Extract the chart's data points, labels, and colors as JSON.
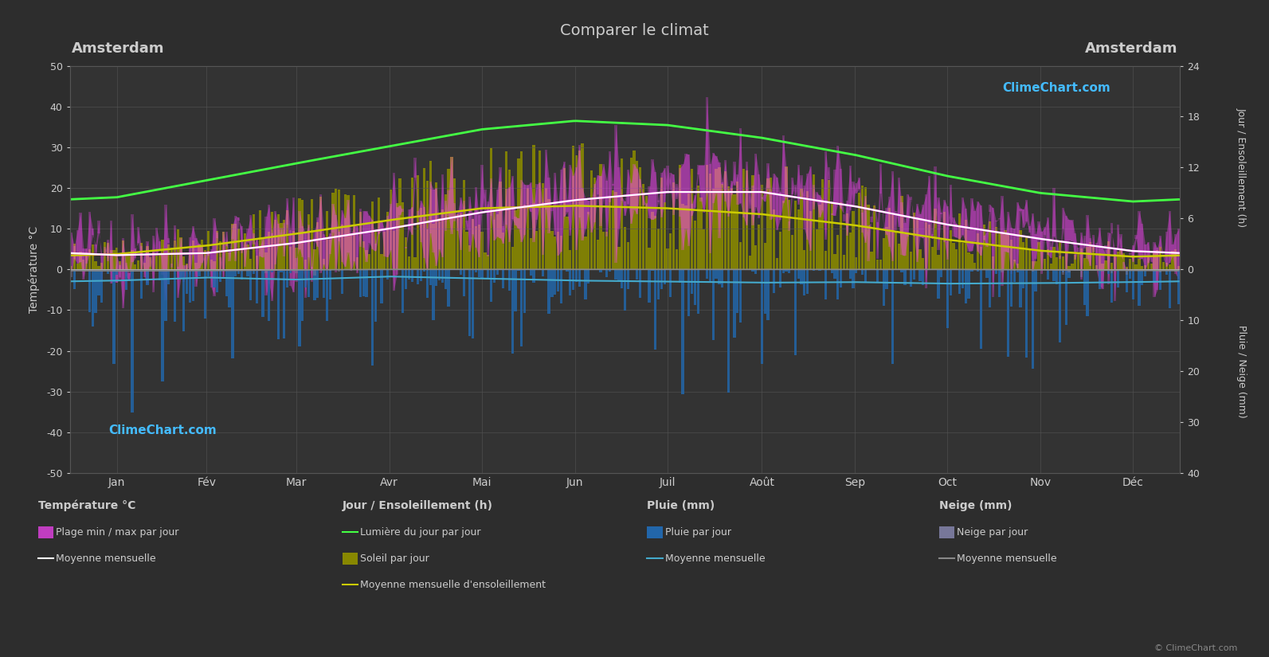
{
  "title": "Comparer le climat",
  "city_left": "Amsterdam",
  "city_right": "Amsterdam",
  "background_color": "#2d2d2d",
  "plot_bg_color": "#333333",
  "text_color": "#cccccc",
  "grid_color": "#555555",
  "months": [
    "Jan",
    "Fév",
    "Mar",
    "Avr",
    "Mai",
    "Jun",
    "Juil",
    "Août",
    "Sep",
    "Oct",
    "Nov",
    "Déc"
  ],
  "temp_ylim": [
    -50,
    50
  ],
  "temp_yticks": [
    -50,
    -40,
    -30,
    -20,
    -10,
    0,
    10,
    20,
    30,
    40,
    50
  ],
  "sun_yticks": [
    0,
    6,
    12,
    18,
    24
  ],
  "rain_yticks": [
    0,
    10,
    20,
    30,
    40
  ],
  "temp_max_monthly": [
    6,
    7,
    10,
    14,
    18,
    21,
    23,
    23,
    19,
    14,
    10,
    7
  ],
  "temp_min_monthly": [
    1,
    1,
    3,
    6,
    10,
    13,
    15,
    15,
    12,
    8,
    5,
    2
  ],
  "temp_mean_monthly": [
    3.5,
    4.0,
    6.5,
    10.0,
    14.0,
    17.0,
    19.0,
    19.0,
    15.5,
    11.0,
    7.5,
    4.5
  ],
  "daylight_monthly": [
    8.5,
    10.5,
    12.5,
    14.5,
    16.5,
    17.5,
    17.0,
    15.5,
    13.5,
    11.0,
    9.0,
    8.0
  ],
  "sunshine_monthly": [
    1.8,
    2.8,
    4.2,
    5.8,
    7.2,
    7.5,
    7.2,
    6.5,
    5.2,
    3.5,
    2.2,
    1.5
  ],
  "rain_daily_scale": 5.0,
  "rain_mean_monthly": [
    2.2,
    1.6,
    2.0,
    1.4,
    1.8,
    2.2,
    2.4,
    2.6,
    2.5,
    2.8,
    2.7,
    2.5
  ],
  "snow_daily_scale": 0.5,
  "snow_mean_monthly": [
    0.3,
    0.25,
    0.1,
    0,
    0,
    0,
    0,
    0,
    0,
    0,
    0.1,
    0.2
  ],
  "magenta_color": "#ff44ff",
  "white_line_color": "#ffffff",
  "green_line_color": "#44ff44",
  "yellow_line_color": "#cccc00",
  "olive_bar_color": "#888800",
  "blue_bar_color": "#2266aa",
  "gray_bar_color": "#777799",
  "cyan_line_color": "#44aacc",
  "light_gray_line_color": "#888888",
  "logo_text": "ClimeChart.com",
  "copyright_text": "© ClimeChart.com",
  "ylabel_left": "Température °C",
  "ylabel_right_top": "Jour / Ensoleillement (h)",
  "ylabel_right_bottom": "Pluie / Neige (mm)",
  "legend_title_temp": "Température °C",
  "legend_title_sun": "Jour / Ensoleillement (h)",
  "legend_title_rain": "Pluie (mm)",
  "legend_title_snow": "Neige (mm)",
  "legend_plage": "Plage min / max par jour",
  "legend_moyenne_temp": "Moyenne mensuelle",
  "legend_lumiere": "Lumière du jour par jour",
  "legend_soleil": "Soleil par jour",
  "legend_soleil_mean": "Moyenne mensuelle d'ensoleillement",
  "legend_pluie": "Pluie par jour",
  "legend_pluie_mean": "Moyenne mensuelle",
  "legend_neige": "Neige par jour",
  "legend_neige_mean": "Moyenne mensuelle"
}
